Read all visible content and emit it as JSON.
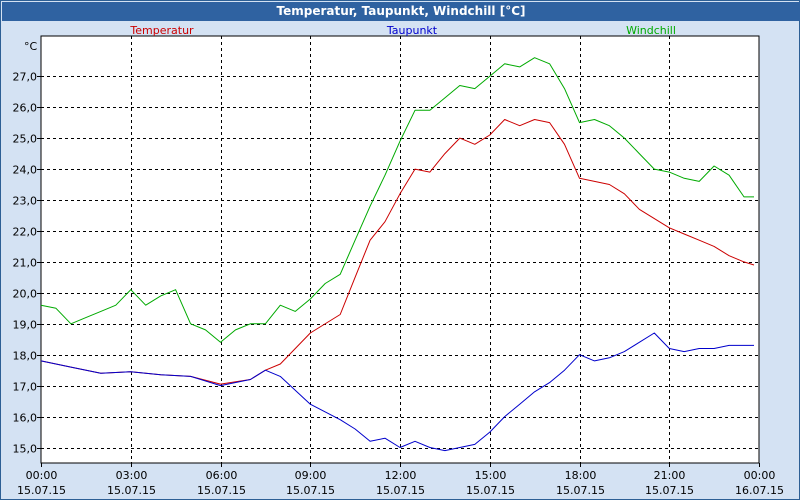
{
  "window": {
    "title": "Temperatur, Taupunkt, Windchill [°C]"
  },
  "chart_data": {
    "type": "line",
    "title": "Temperatur, Taupunkt, Windchill [°C]",
    "ylabel": "°C",
    "ylim": [
      14.5,
      28.3
    ],
    "y_ticks": [
      "15,0",
      "16,0",
      "17,0",
      "18,0",
      "19,0",
      "20,0",
      "21,0",
      "22,0",
      "23,0",
      "24,0",
      "25,0",
      "26,0",
      "27,0"
    ],
    "x_ticks": [
      {
        "time": "00:00",
        "date": "15.07.15"
      },
      {
        "time": "03:00",
        "date": "15.07.15"
      },
      {
        "time": "06:00",
        "date": "15.07.15"
      },
      {
        "time": "09:00",
        "date": "15.07.15"
      },
      {
        "time": "12:00",
        "date": "15.07.15"
      },
      {
        "time": "15:00",
        "date": "15.07.15"
      },
      {
        "time": "18:00",
        "date": "15.07.15"
      },
      {
        "time": "21:00",
        "date": "15.07.15"
      },
      {
        "time": "00:00",
        "date": "16.07.15"
      }
    ],
    "grid": true,
    "legend_placement": "top",
    "series": [
      {
        "name": "Temperatur",
        "color": "#cc0000",
        "x": [
          "00:00",
          "01:00",
          "02:00",
          "03:00",
          "04:00",
          "05:00",
          "06:00",
          "07:00",
          "07:30",
          "08:00",
          "09:00",
          "10:00",
          "10:30",
          "11:00",
          "11:30",
          "12:00",
          "12:30",
          "13:00",
          "13:30",
          "14:00",
          "14:30",
          "15:00",
          "15:30",
          "16:00",
          "16:30",
          "17:00",
          "17:30",
          "18:00",
          "18:30",
          "19:00",
          "19:30",
          "20:00",
          "20:30",
          "21:00",
          "21:30",
          "22:00",
          "22:30",
          "23:00",
          "23:30",
          "23:50"
        ],
        "values": [
          17.8,
          17.6,
          17.4,
          17.45,
          17.35,
          17.3,
          17.05,
          17.2,
          17.5,
          17.7,
          18.7,
          19.3,
          20.5,
          21.7,
          22.3,
          23.2,
          24.0,
          23.9,
          24.5,
          25.0,
          24.8,
          25.1,
          25.6,
          25.4,
          25.6,
          25.5,
          24.8,
          23.7,
          23.6,
          23.5,
          23.2,
          22.7,
          22.4,
          22.1,
          21.9,
          21.7,
          21.5,
          21.2,
          21.0,
          20.9
        ]
      },
      {
        "name": "Taupunkt",
        "color": "#0000cc",
        "x": [
          "00:00",
          "01:00",
          "02:00",
          "03:00",
          "04:00",
          "05:00",
          "06:00",
          "07:00",
          "07:30",
          "08:00",
          "09:00",
          "10:00",
          "10:30",
          "11:00",
          "11:30",
          "12:00",
          "12:30",
          "13:00",
          "13:30",
          "14:00",
          "14:30",
          "15:00",
          "15:30",
          "16:00",
          "16:30",
          "17:00",
          "17:30",
          "18:00",
          "18:30",
          "19:00",
          "19:30",
          "20:00",
          "20:30",
          "21:00",
          "21:30",
          "22:00",
          "22:30",
          "23:00",
          "23:30",
          "23:50"
        ],
        "values": [
          17.8,
          17.6,
          17.4,
          17.45,
          17.35,
          17.3,
          17.0,
          17.2,
          17.5,
          17.3,
          16.4,
          15.9,
          15.6,
          15.2,
          15.3,
          15.0,
          15.2,
          15.0,
          14.9,
          15.0,
          15.1,
          15.5,
          16.0,
          16.4,
          16.8,
          17.1,
          17.5,
          18.0,
          17.8,
          17.9,
          18.1,
          18.4,
          18.7,
          18.2,
          18.1,
          18.2,
          18.2,
          18.3,
          18.3,
          18.3
        ]
      },
      {
        "name": "Windchill",
        "color": "#00aa00",
        "x": [
          "00:00",
          "00:30",
          "01:00",
          "01:30",
          "02:00",
          "02:30",
          "03:00",
          "03:30",
          "04:00",
          "04:30",
          "05:00",
          "05:30",
          "06:00",
          "06:30",
          "07:00",
          "07:30",
          "08:00",
          "08:30",
          "09:00",
          "09:30",
          "10:00",
          "10:30",
          "11:00",
          "11:30",
          "12:00",
          "12:30",
          "13:00",
          "13:30",
          "14:00",
          "14:30",
          "15:00",
          "15:30",
          "16:00",
          "16:30",
          "17:00",
          "17:30",
          "18:00",
          "18:30",
          "19:00",
          "19:30",
          "20:00",
          "20:30",
          "21:00",
          "21:30",
          "22:00",
          "22:30",
          "23:00",
          "23:30",
          "23:50"
        ],
        "values": [
          19.6,
          19.5,
          19.0,
          19.2,
          19.4,
          19.6,
          20.1,
          19.6,
          19.9,
          20.1,
          19.0,
          18.8,
          18.4,
          18.8,
          19.0,
          19.0,
          19.6,
          19.4,
          19.8,
          20.3,
          20.6,
          21.7,
          22.8,
          23.8,
          24.9,
          25.9,
          25.9,
          26.3,
          26.7,
          26.6,
          27.0,
          27.4,
          27.3,
          27.6,
          27.4,
          26.6,
          25.5,
          25.6,
          25.4,
          25.0,
          24.5,
          24.0,
          23.9,
          23.7,
          23.6,
          24.1,
          23.8,
          23.1,
          23.1
        ]
      }
    ]
  }
}
